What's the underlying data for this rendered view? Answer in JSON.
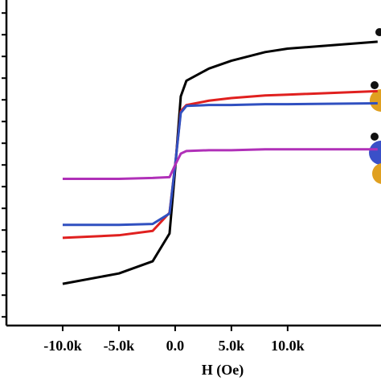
{
  "chart_data": {
    "type": "line",
    "xlabel": "H (Oe)",
    "x": [
      -10000,
      -5000,
      -2000,
      -500,
      0,
      500,
      1000,
      3000,
      5000,
      8000,
      10000,
      18000
    ],
    "series": [
      {
        "color": "#000000",
        "values": [
          -13.7,
          -12.5,
          -11.1,
          -7.9,
          -0.5,
          7.9,
          9.7,
          11.1,
          12,
          13,
          13.4,
          14.2
        ]
      },
      {
        "color": "#e0201f",
        "values": [
          -8.4,
          -8.1,
          -7.6,
          -5.5,
          0,
          6.2,
          6.9,
          7.4,
          7.7,
          8,
          8.1,
          8.5
        ]
      },
      {
        "color": "#3050c0",
        "values": [
          -6.9,
          -6.9,
          -6.8,
          -5.6,
          0,
          6,
          6.8,
          6.9,
          6.9,
          7,
          7,
          7.1
        ]
      },
      {
        "color": "#b030b8",
        "values": [
          -1.6,
          -1.6,
          -1.5,
          -1.4,
          0,
          1.3,
          1.6,
          1.7,
          1.7,
          1.8,
          1.8,
          1.8
        ]
      }
    ],
    "xlim": [
      -15000,
      18300
    ],
    "xticks": [
      {
        "value": -10000,
        "label": "-10.0k"
      },
      {
        "value": -5000,
        "label": "-5.0k"
      },
      {
        "value": 0,
        "label": "0.0"
      },
      {
        "value": 5000,
        "label": "5.0k"
      },
      {
        "value": 10000,
        "label": "10.0k"
      }
    ],
    "ylim": [
      -18.5,
      19
    ],
    "yticks": [
      -17.5,
      -15,
      -12.5,
      -10,
      -7.5,
      -5,
      -2.5,
      0,
      2.5,
      5,
      7.5,
      10,
      12.5,
      15,
      17.5
    ]
  }
}
